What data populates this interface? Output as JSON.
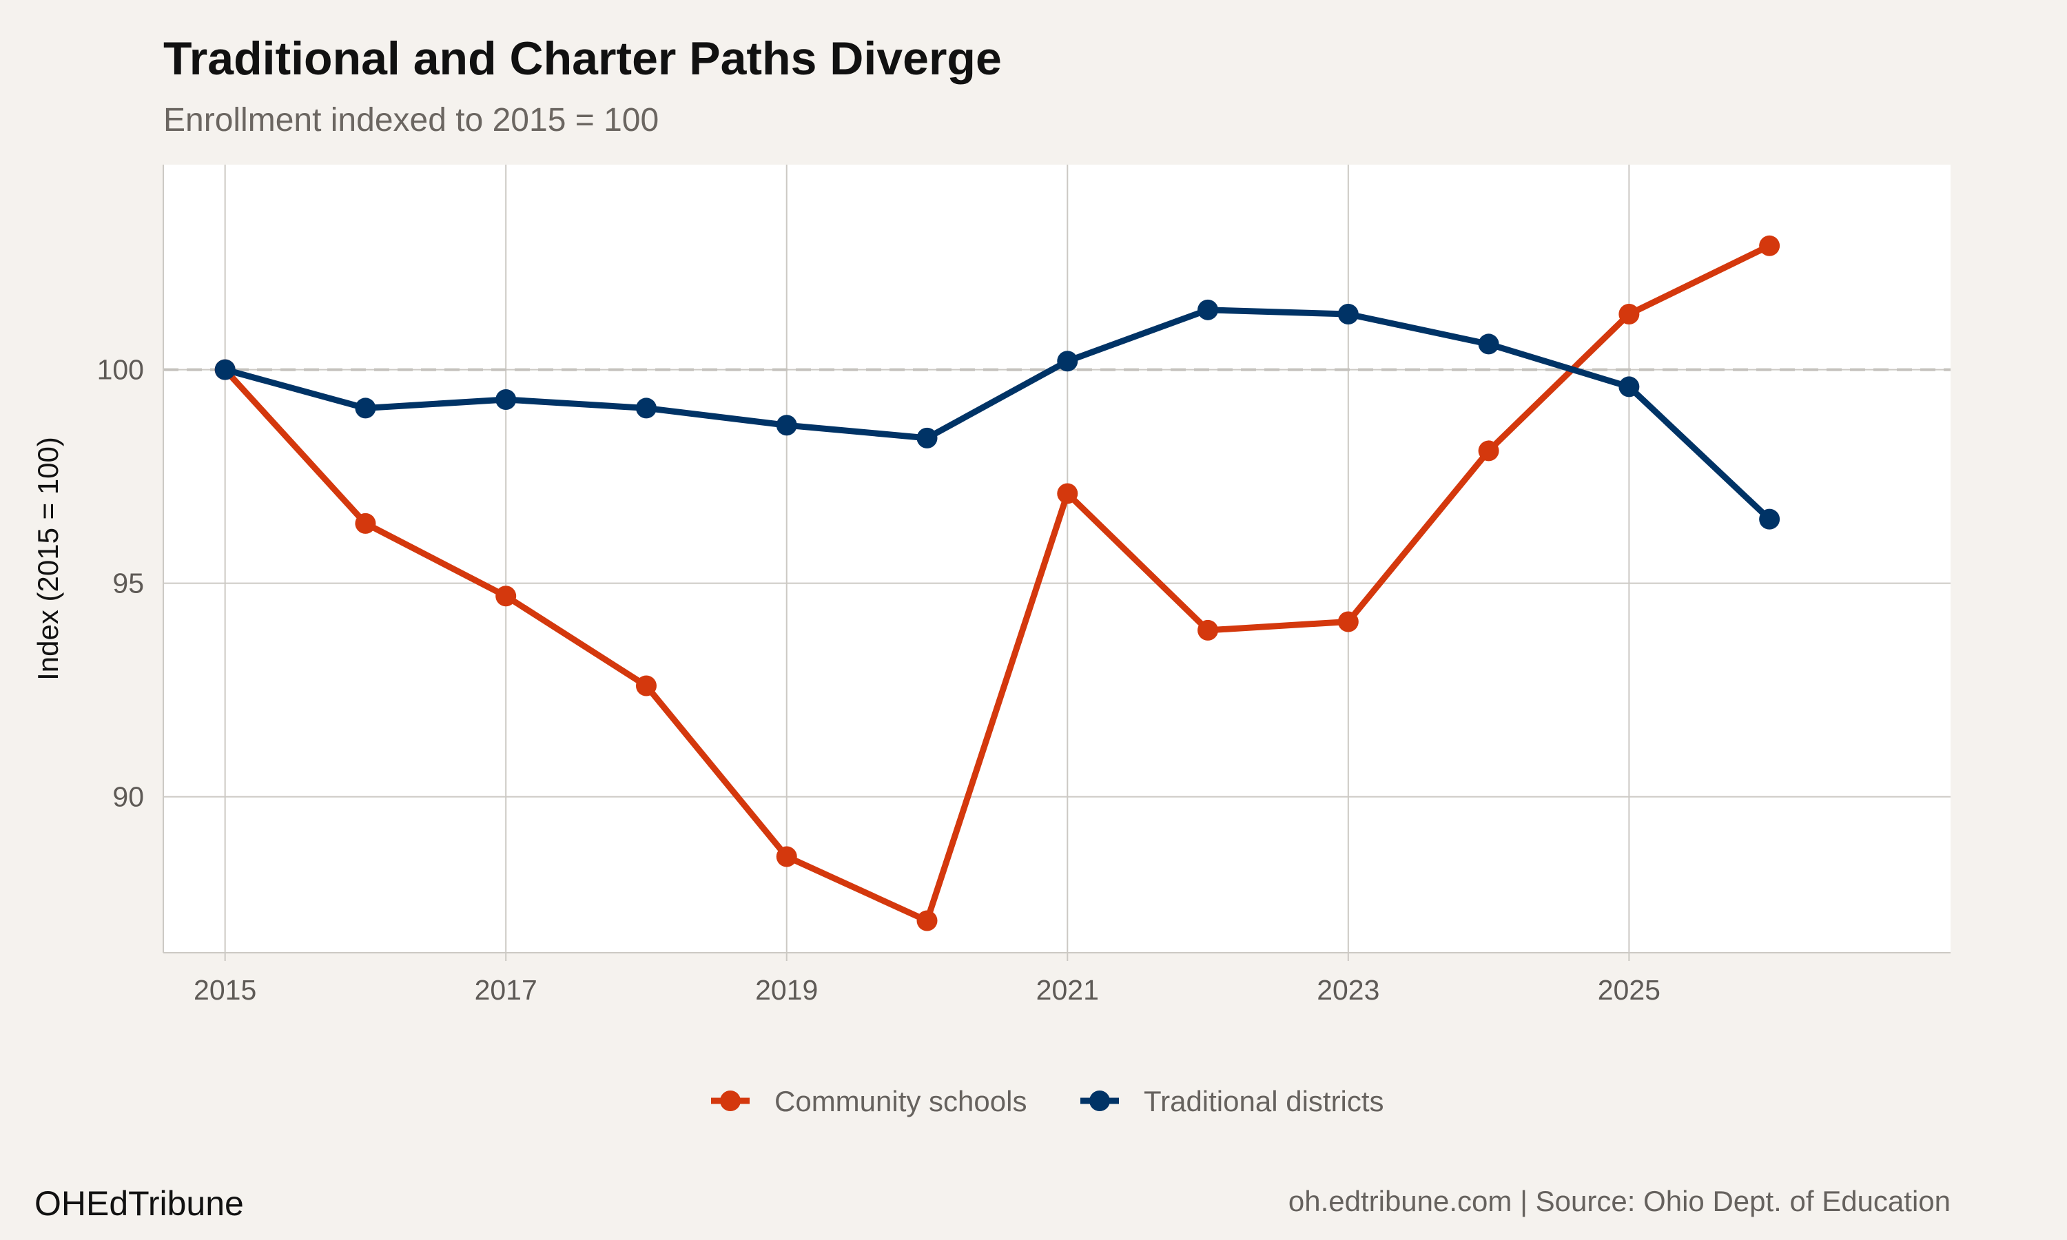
{
  "title": "Traditional and Charter Paths Diverge",
  "subtitle": "Enrollment indexed to 2015 = 100",
  "brand": "OHEdTribune",
  "caption": "oh.edtribune.com | Source: Ohio Dept. of Education",
  "colors": {
    "background": "#F5F2EE",
    "panel": "#FFFFFF",
    "grid": "#CCC9C4",
    "community": "#D4380D",
    "traditional": "#003366"
  },
  "chart_data": {
    "type": "line",
    "title": "Traditional and Charter Paths Diverge",
    "subtitle": "Enrollment indexed to 2015 = 100",
    "xlabel": "",
    "ylabel": "Index (2015 = 100)",
    "x": [
      2015,
      2016,
      2017,
      2018,
      2019,
      2020,
      2021,
      2022,
      2023,
      2024,
      2025,
      2026
    ],
    "xlim": [
      2014.56,
      2027.29
    ],
    "ylim": [
      86.35,
      104.8
    ],
    "xticks": [
      "2015",
      "2017",
      "2019",
      "2021",
      "2023",
      "2025"
    ],
    "yticks": [
      "90",
      "95",
      "100"
    ],
    "reference_line": {
      "y": 100,
      "style": "dashed"
    },
    "grid": true,
    "legend": "bottom",
    "series": [
      {
        "name": "Community schools",
        "color": "#D4380D",
        "values": [
          100,
          96.4,
          94.7,
          92.6,
          88.6,
          87.1,
          97.1,
          93.9,
          94.1,
          98.1,
          101.3,
          102.9
        ]
      },
      {
        "name": "Traditional districts",
        "color": "#003366",
        "values": [
          100,
          99.1,
          99.3,
          99.1,
          98.7,
          98.4,
          100.2,
          101.4,
          101.3,
          100.6,
          99.6,
          96.5
        ]
      }
    ]
  }
}
